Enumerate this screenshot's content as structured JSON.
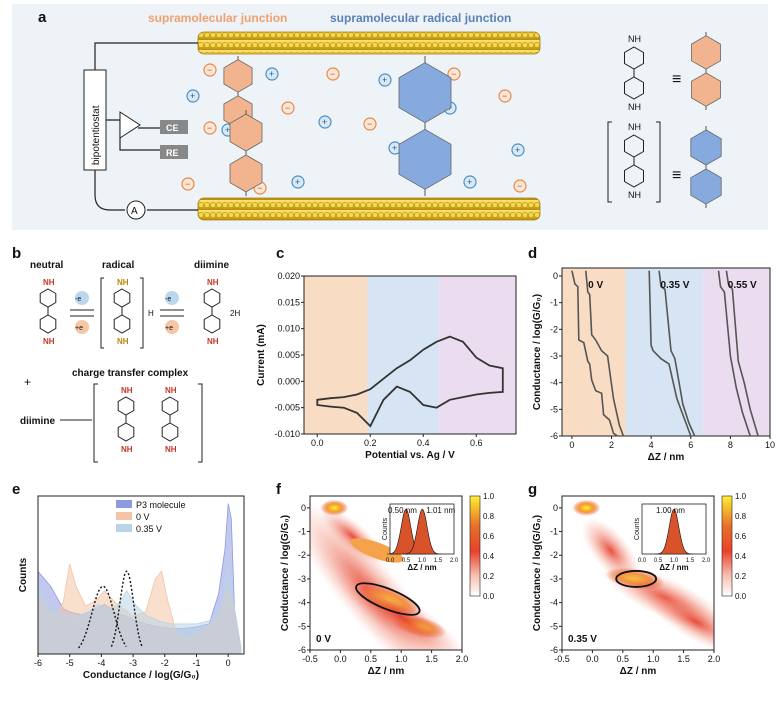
{
  "panel_labels": [
    "a",
    "b",
    "c",
    "d",
    "e",
    "f",
    "g"
  ],
  "panel_a": {
    "title_left": "supramolecular junction",
    "title_right": "supramolecular radical junction",
    "bipotentiostat": "bipotentiostat",
    "ce": "CE",
    "re": "RE",
    "ammeter": "A",
    "nh2": "NH",
    "nh": "NH",
    "equiv": "≡",
    "plus": "+",
    "minus": "−",
    "colors": {
      "cation": "#4a8fc7",
      "anion": "#e8884a",
      "gold": "#e6c32b",
      "neutral_mol": "#f2b48e",
      "radical_mol": "#86a9de"
    }
  },
  "panel_b": {
    "neutral": "neutral",
    "radical": "radical",
    "diimine": "diimine",
    "ctc": "charge transfer complex",
    "diimine_left": "diimine",
    "e_minus": "-e",
    "e_plus": "+e",
    "h_plus": "H",
    "two_h_plus": "2H",
    "plus_sign": "+",
    "nh2": "NH",
    "nh": "NH"
  },
  "chart_data": [
    {
      "panel": "c",
      "type": "line",
      "xlabel": "Potential vs. Ag / V",
      "ylabel": "Current (mA)",
      "xlim": [
        -0.05,
        0.75
      ],
      "ylim": [
        -0.01,
        0.02
      ],
      "xticks": [
        "0.0",
        "0.2",
        "0.4",
        "0.6"
      ],
      "yticks": [
        "-0.010",
        "-0.005",
        "0.000",
        "0.005",
        "0.010",
        "0.015",
        "0.020"
      ],
      "regions": [
        {
          "x0": -0.05,
          "x1": 0.19,
          "color": "#f9dcc4"
        },
        {
          "x0": 0.19,
          "x1": 0.46,
          "color": "#d6e4f3"
        },
        {
          "x0": 0.46,
          "x1": 0.75,
          "color": "#ecdcf0"
        }
      ],
      "series": [
        {
          "x": [
            0.0,
            0.05,
            0.1,
            0.15,
            0.2,
            0.25,
            0.3,
            0.35,
            0.4,
            0.45,
            0.5,
            0.55,
            0.6,
            0.65,
            0.7,
            0.7,
            0.65,
            0.6,
            0.55,
            0.5,
            0.45,
            0.4,
            0.35,
            0.3,
            0.25,
            0.2,
            0.15,
            0.1,
            0.05,
            0.0
          ],
          "y": [
            -0.0035,
            -0.0032,
            -0.003,
            -0.0025,
            -0.0015,
            0.0005,
            0.0025,
            0.004,
            0.006,
            0.0075,
            0.0085,
            0.0075,
            0.0045,
            0.003,
            0.0025,
            -0.002,
            -0.0022,
            -0.0025,
            -0.003,
            -0.0035,
            -0.005,
            -0.0045,
            -0.002,
            -0.001,
            -0.0035,
            -0.0085,
            -0.006,
            -0.005,
            -0.0048,
            -0.0045
          ]
        }
      ]
    },
    {
      "panel": "d",
      "type": "line",
      "xlabel": "ΔZ / nm",
      "ylabel": "Conductance / log(G/G₀)",
      "xlim": [
        -0.5,
        10
      ],
      "ylim": [
        -6,
        0.3
      ],
      "xticks": [
        "0",
        "2",
        "4",
        "6",
        "8",
        "10"
      ],
      "yticks": [
        "0",
        "-1",
        "-2",
        "-3",
        "-4",
        "-5",
        "-6"
      ],
      "annotations": [
        "0 V",
        "0.35 V",
        "0.55 V"
      ],
      "regions": [
        {
          "x0": -0.5,
          "x1": 2.7,
          "color": "#f9dcc4"
        },
        {
          "x0": 2.7,
          "x1": 6.6,
          "color": "#d6e4f3"
        },
        {
          "x0": 6.6,
          "x1": 10,
          "color": "#ecdcf0"
        }
      ],
      "series": [
        {
          "x": [
            0,
            0.15,
            0.3,
            0.35,
            0.6,
            0.8,
            0.9,
            1.0,
            1.2,
            1.5,
            1.6,
            1.9,
            2.1,
            2.3
          ],
          "y": [
            0.2,
            -0.3,
            -0.4,
            -2.4,
            -2.5,
            -3.2,
            -3.3,
            -3.9,
            -4.3,
            -4.4,
            -5.2,
            -5.4,
            -5.9,
            -6
          ]
        },
        {
          "x": [
            0.7,
            0.8,
            0.9,
            1.0,
            1.2,
            1.5,
            1.8,
            2.1,
            2.4,
            2.6
          ],
          "y": [
            0.2,
            -0.6,
            -0.7,
            -2.2,
            -2.4,
            -2.8,
            -3.0,
            -4.6,
            -5.6,
            -6
          ]
        },
        {
          "x": [
            3.9,
            4.0,
            4.1,
            4.5,
            4.9,
            5.3,
            5.7,
            6.0
          ],
          "y": [
            0.2,
            -2.6,
            -2.8,
            -3.1,
            -3.3,
            -4.6,
            -5.4,
            -6
          ]
        },
        {
          "x": [
            4.4,
            4.5,
            4.7,
            5.0,
            5.2,
            5.6,
            5.9,
            6.2
          ],
          "y": [
            0.2,
            -0.4,
            -0.5,
            -2.8,
            -3.1,
            -4.8,
            -5.5,
            -6
          ]
        },
        {
          "x": [
            7.4,
            7.5,
            7.7,
            8.0,
            8.3,
            8.6,
            9.0
          ],
          "y": [
            0.2,
            -0.4,
            -0.6,
            -3.0,
            -4.2,
            -5.1,
            -6
          ]
        },
        {
          "x": [
            7.8,
            7.9,
            8.1,
            8.4,
            8.7,
            9.0,
            9.4
          ],
          "y": [
            0.2,
            -0.3,
            -0.5,
            -3.2,
            -4.0,
            -5.0,
            -6
          ]
        }
      ]
    },
    {
      "panel": "e",
      "type": "area",
      "xlabel": "Conductance / log(G/G₀)",
      "ylabel": "Counts",
      "xlim": [
        -6,
        0.5
      ],
      "xticks": [
        "-6",
        "-5",
        "-4",
        "-3",
        "-2",
        "-1",
        "0"
      ],
      "legend_position": "top-right",
      "series": [
        {
          "name": "P3 molecule",
          "color": "#8f9be0",
          "x": [
            -6,
            -5.6,
            -5.2,
            -5.0,
            -4.6,
            -4.2,
            -3.9,
            -3.5,
            -3.2,
            -2.9,
            -2.6,
            -2.2,
            -1.8,
            -1.4,
            -1.0,
            -0.6,
            -0.3,
            -0.1,
            0.0,
            0.1,
            0.2,
            0.4
          ],
          "y": [
            0.55,
            0.45,
            0.3,
            0.28,
            0.26,
            0.3,
            0.33,
            0.27,
            0.25,
            0.22,
            0.2,
            0.18,
            0.17,
            0.17,
            0.18,
            0.2,
            0.4,
            0.7,
            1.0,
            0.9,
            0.3,
            0.05
          ]
        },
        {
          "name": "0 V",
          "color": "#f3c5a6",
          "x": [
            -6,
            -5.7,
            -5.4,
            -5.2,
            -5.0,
            -4.8,
            -4.5,
            -4.2,
            -3.9,
            -3.6,
            -3.3,
            -3.0,
            -2.6,
            -2.3,
            -2.1,
            -1.9,
            -1.6,
            -1.2,
            -0.8,
            -0.3,
            0,
            0.4
          ],
          "y": [
            0.4,
            0.3,
            0.25,
            0.35,
            0.6,
            0.45,
            0.32,
            0.35,
            0.42,
            0.35,
            0.3,
            0.25,
            0.28,
            0.5,
            0.55,
            0.35,
            0.12,
            0.1,
            0.15,
            0.25,
            0.45,
            0.05
          ]
        },
        {
          "name": "0.35 V",
          "color": "#b9d4e6",
          "x": [
            -6,
            -5.6,
            -5.2,
            -4.8,
            -4.4,
            -4.1,
            -3.8,
            -3.5,
            -3.2,
            -2.9,
            -2.6,
            -2.2,
            -1.8,
            -1.4,
            -1.0,
            -0.6,
            -0.2,
            0,
            0.2,
            0.4
          ],
          "y": [
            0.45,
            0.3,
            0.26,
            0.25,
            0.28,
            0.33,
            0.3,
            0.32,
            0.42,
            0.32,
            0.26,
            0.22,
            0.2,
            0.2,
            0.2,
            0.22,
            0.3,
            0.6,
            0.3,
            0.05
          ]
        }
      ]
    },
    {
      "panel": "f",
      "type": "heatmap",
      "xlabel": "ΔZ / nm",
      "ylabel": "Conductance / log(G/G₀)",
      "xlim": [
        -0.5,
        2.0
      ],
      "ylim": [
        -6,
        0.5
      ],
      "xticks": [
        "-0.5",
        "0.0",
        "0.5",
        "1.0",
        "1.5",
        "2.0"
      ],
      "yticks": [
        "0",
        "-1",
        "-2",
        "-3",
        "-4",
        "-5",
        "-6"
      ],
      "annotation": "0 V",
      "colorbar_ticks": [
        "0.0",
        "0.2",
        "0.4",
        "0.6",
        "0.8",
        "1.0"
      ],
      "inset": {
        "xlabel": "ΔZ / nm",
        "ylabel": "Counts",
        "xticks": [
          "0.0",
          "0.5",
          "1.0",
          "1.5",
          "2.0"
        ],
        "peaks": [
          "0.50 nm",
          "1.01 nm"
        ]
      }
    },
    {
      "panel": "g",
      "type": "heatmap",
      "xlabel": "ΔZ / nm",
      "ylabel": "Conductance / log(G/G₀)",
      "xlim": [
        -0.5,
        2.0
      ],
      "ylim": [
        -6,
        0.5
      ],
      "xticks": [
        "-0.5",
        "0.0",
        "0.5",
        "1.0",
        "1.5",
        "2.0"
      ],
      "yticks": [
        "0",
        "-1",
        "-2",
        "-3",
        "-4",
        "-5",
        "-6"
      ],
      "annotation": "0.35 V",
      "colorbar_ticks": [
        "0.0",
        "0.2",
        "0.4",
        "0.6",
        "0.8",
        "1.0"
      ],
      "inset": {
        "xlabel": "ΔZ / nm",
        "ylabel": "Counts",
        "xticks": [
          "0.0",
          "0.5",
          "1.0",
          "1.5",
          "2.0"
        ],
        "peaks": [
          "1.00 nm"
        ]
      }
    }
  ]
}
